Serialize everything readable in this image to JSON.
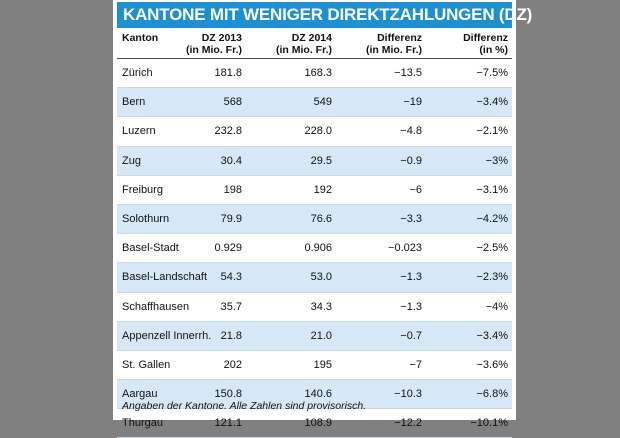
{
  "title": "KANTONE MIT WENIGER DIREKTZAHLUNGEN (DZ)",
  "columns": [
    {
      "line1": "Kanton",
      "line2": ""
    },
    {
      "line1": "DZ 2013",
      "line2": "(in Mio. Fr.)"
    },
    {
      "line1": "DZ 2014",
      "line2": "(in Mio. Fr.)"
    },
    {
      "line1": "Differenz",
      "line2": "(in  Mio. Fr.)"
    },
    {
      "line1": "Differenz",
      "line2": "(in %)"
    }
  ],
  "rows": [
    [
      "Zürich",
      "181.8",
      "168.3",
      "−13.5",
      "−7.5%"
    ],
    [
      "Bern",
      "568",
      "549",
      "−19",
      "−3.4%"
    ],
    [
      "Luzern",
      "232.8",
      "228.0",
      "−4.8",
      "−2.1%"
    ],
    [
      "Zug",
      "30.4",
      "29.5",
      "−0.9",
      "−3%"
    ],
    [
      "Freiburg",
      "198",
      "192",
      "−6",
      "−3.1%"
    ],
    [
      "Solothurn",
      "79.9",
      "76.6",
      "−3.3",
      "−4.2%"
    ],
    [
      "Basel-Stadt",
      "0.929",
      "0.906",
      "−0.023",
      "−2.5%"
    ],
    [
      "Basel-Landschaft",
      "54.3",
      "53.0",
      "−1.3",
      "−2.3%"
    ],
    [
      "Schaffhausen",
      "35.7",
      "34.3",
      "−1.3",
      "−4%"
    ],
    [
      "Appenzell Innerrh.",
      "21.8",
      "21.0",
      "−0.7",
      "−3.4%"
    ],
    [
      "St. Gallen",
      "202",
      "195",
      "−7",
      "−3.6%"
    ],
    [
      "Aargau",
      "150.8",
      "140.6",
      "−10.3",
      "−6.8%"
    ],
    [
      "Thurgau",
      "121.1",
      "108.9",
      "−12.2",
      "−10.1%"
    ]
  ],
  "footnote": "Angaben der Kantone. Alle Zahlen sind provisorisch.",
  "colors": {
    "title_bg": "#1e8fd0",
    "row_alt": "#d6e8f7",
    "page_bg": "#808080"
  }
}
